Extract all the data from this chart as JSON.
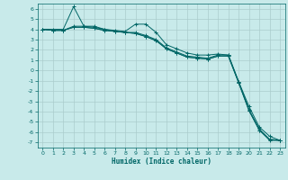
{
  "xlabel": "Humidex (Indice chaleur)",
  "background_color": "#c8eaea",
  "grid_color": "#aacccc",
  "line_color": "#006666",
  "xlim": [
    -0.5,
    23.5
  ],
  "ylim": [
    -7.5,
    6.5
  ],
  "xticks": [
    0,
    1,
    2,
    3,
    4,
    5,
    6,
    7,
    8,
    9,
    10,
    11,
    12,
    13,
    14,
    15,
    16,
    17,
    18,
    19,
    20,
    21,
    22,
    23
  ],
  "yticks": [
    -7,
    -6,
    -5,
    -4,
    -3,
    -2,
    -1,
    0,
    1,
    2,
    3,
    4,
    5,
    6
  ],
  "series": [
    {
      "x": [
        0,
        1,
        2,
        3,
        4,
        5,
        6,
        7,
        8,
        9,
        10,
        11,
        12,
        13,
        14,
        15,
        16,
        17,
        18,
        19,
        20,
        21,
        22,
        23
      ],
      "y": [
        4.0,
        4.0,
        4.0,
        6.2,
        4.3,
        4.3,
        4.0,
        3.9,
        3.8,
        4.5,
        4.5,
        3.7,
        2.5,
        2.1,
        1.7,
        1.5,
        1.5,
        1.6,
        1.5,
        -1.1,
        -3.5,
        -5.5,
        -6.4,
        -6.8
      ]
    },
    {
      "x": [
        0,
        1,
        2,
        3,
        4,
        5,
        6,
        7,
        8,
        9,
        10,
        11,
        12,
        13,
        14,
        15,
        16,
        17,
        18,
        19,
        20,
        21,
        22,
        23
      ],
      "y": [
        4.0,
        3.9,
        3.9,
        4.2,
        4.2,
        4.1,
        3.9,
        3.8,
        3.7,
        3.6,
        3.3,
        2.9,
        2.1,
        1.7,
        1.3,
        1.2,
        1.1,
        1.4,
        1.4,
        -1.2,
        -3.9,
        -5.8,
        -6.7,
        -6.8
      ]
    },
    {
      "x": [
        0,
        1,
        2,
        3,
        4,
        5,
        6,
        7,
        8,
        9,
        10,
        11,
        12,
        13,
        14,
        15,
        16,
        17,
        18,
        19,
        20,
        21,
        22,
        23
      ],
      "y": [
        4.0,
        3.9,
        3.9,
        4.3,
        4.3,
        4.2,
        4.0,
        3.8,
        3.7,
        3.7,
        3.4,
        3.0,
        2.2,
        1.8,
        1.4,
        1.3,
        1.2,
        1.5,
        1.5,
        -1.1,
        -3.8,
        -5.7,
        -6.7,
        -6.8
      ]
    },
    {
      "x": [
        0,
        1,
        2,
        3,
        4,
        5,
        6,
        7,
        8,
        9,
        10,
        11,
        12,
        13,
        14,
        15,
        16,
        17,
        18,
        19,
        20,
        21,
        22,
        23
      ],
      "y": [
        4.0,
        3.9,
        3.9,
        4.2,
        4.2,
        4.1,
        3.9,
        3.8,
        3.7,
        3.6,
        3.3,
        2.9,
        2.1,
        1.7,
        1.3,
        1.2,
        1.1,
        1.4,
        1.4,
        -1.2,
        -3.9,
        -5.8,
        -6.8,
        -6.8
      ]
    }
  ]
}
